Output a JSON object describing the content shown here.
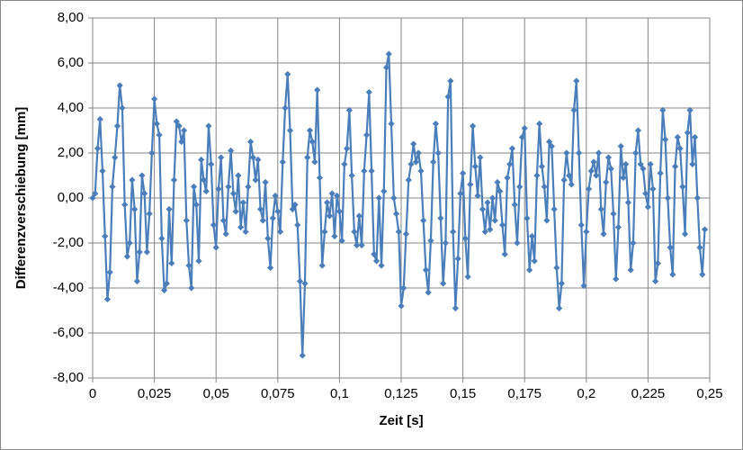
{
  "chart_data": {
    "type": "line",
    "x_label": "Zeit [s]",
    "y_label": "Differenzverschiebung [mm]",
    "x": [
      0,
      0.001,
      0.002,
      0.003,
      0.004,
      0.005,
      0.006,
      0.007,
      0.008,
      0.009,
      0.01,
      0.011,
      0.012,
      0.013,
      0.014,
      0.015,
      0.016,
      0.017,
      0.018,
      0.019,
      0.02,
      0.021,
      0.022,
      0.023,
      0.024,
      0.025,
      0.026,
      0.027,
      0.028,
      0.029,
      0.03,
      0.031,
      0.032,
      0.033,
      0.034,
      0.035,
      0.036,
      0.037,
      0.038,
      0.039,
      0.04,
      0.041,
      0.042,
      0.043,
      0.044,
      0.045,
      0.046,
      0.047,
      0.048,
      0.049,
      0.05,
      0.051,
      0.052,
      0.053,
      0.054,
      0.055,
      0.056,
      0.057,
      0.058,
      0.059,
      0.06,
      0.061,
      0.062,
      0.063,
      0.064,
      0.065,
      0.066,
      0.067,
      0.068,
      0.069,
      0.07,
      0.071,
      0.072,
      0.073,
      0.074,
      0.075,
      0.076,
      0.077,
      0.078,
      0.079,
      0.08,
      0.081,
      0.082,
      0.083,
      0.084,
      0.085,
      0.086,
      0.087,
      0.088,
      0.089,
      0.09,
      0.091,
      0.092,
      0.093,
      0.094,
      0.095,
      0.096,
      0.097,
      0.098,
      0.099,
      0.1,
      0.101,
      0.102,
      0.103,
      0.104,
      0.105,
      0.106,
      0.107,
      0.108,
      0.109,
      0.11,
      0.111,
      0.112,
      0.113,
      0.114,
      0.115,
      0.116,
      0.117,
      0.118,
      0.119,
      0.12,
      0.121,
      0.122,
      0.123,
      0.124,
      0.125,
      0.126,
      0.127,
      0.128,
      0.129,
      0.13,
      0.131,
      0.132,
      0.133,
      0.134,
      0.135,
      0.136,
      0.137,
      0.138,
      0.139,
      0.14,
      0.141,
      0.142,
      0.143,
      0.144,
      0.145,
      0.146,
      0.147,
      0.148,
      0.149,
      0.15,
      0.151,
      0.152,
      0.153,
      0.154,
      0.155,
      0.156,
      0.157,
      0.158,
      0.159,
      0.16,
      0.161,
      0.162,
      0.163,
      0.164,
      0.165,
      0.166,
      0.167,
      0.168,
      0.169,
      0.17,
      0.171,
      0.172,
      0.173,
      0.174,
      0.175,
      0.176,
      0.177,
      0.178,
      0.179,
      0.18,
      0.181,
      0.182,
      0.183,
      0.184,
      0.185,
      0.186,
      0.187,
      0.188,
      0.189,
      0.19,
      0.191,
      0.192,
      0.193,
      0.194,
      0.195,
      0.196,
      0.197,
      0.198,
      0.199,
      0.2,
      0.201,
      0.202,
      0.203,
      0.204,
      0.205,
      0.206,
      0.207,
      0.208,
      0.209,
      0.21,
      0.211,
      0.212,
      0.213,
      0.214,
      0.215,
      0.216,
      0.217,
      0.218,
      0.219,
      0.22,
      0.221,
      0.222,
      0.223,
      0.224,
      0.225,
      0.226,
      0.227,
      0.228,
      0.229,
      0.23,
      0.231,
      0.232,
      0.233,
      0.234,
      0.235,
      0.236,
      0.237,
      0.238,
      0.239,
      0.24,
      0.241,
      0.242,
      0.243,
      0.244,
      0.245,
      0.246,
      0.247,
      0.248
    ],
    "series": [
      {
        "color": "#4a7ebb",
        "values": [
          0,
          0.2,
          2.2,
          3.5,
          1.2,
          -1.7,
          -4.5,
          -3.3,
          0.5,
          1.8,
          3.2,
          5.0,
          4.0,
          -0.3,
          -2.6,
          -2.0,
          0.8,
          -0.5,
          -3.7,
          -2.4,
          1.0,
          0.2,
          -2.4,
          -0.7,
          2.0,
          4.4,
          3.3,
          2.8,
          -1.8,
          -4.1,
          -3.8,
          -0.5,
          -2.9,
          0.8,
          3.4,
          3.2,
          2.5,
          3.0,
          -1.0,
          -3.0,
          -4.0,
          0.5,
          -0.3,
          -2.8,
          1.7,
          0.8,
          0.3,
          3.2,
          1.5,
          -1.2,
          -2.2,
          0.4,
          1.8,
          -1.0,
          -1.6,
          0.5,
          2.1,
          0.2,
          -0.6,
          1.0,
          -1.3,
          -0.2,
          -1.5,
          0.5,
          2.5,
          1.8,
          0.8,
          1.7,
          -0.5,
          -1.0,
          0.7,
          -1.8,
          -3.1,
          -0.9,
          0.1,
          -0.6,
          -1.5,
          1.6,
          4.0,
          5.5,
          3.0,
          -0.5,
          -0.3,
          -1.2,
          -3.7,
          -7.0,
          -3.8,
          1.8,
          3.0,
          2.5,
          1.6,
          4.8,
          0.9,
          -3.0,
          -1.5,
          -0.2,
          -0.8,
          0.2,
          -1.7,
          0.1,
          -0.6,
          -1.9,
          1.5,
          2.2,
          3.9,
          1.0,
          -1.5,
          -2.1,
          -0.8,
          -2.1,
          1.2,
          2.8,
          4.7,
          1.2,
          -2.5,
          -2.8,
          0.0,
          -3.0,
          0.3,
          5.8,
          6.4,
          3.3,
          0.0,
          -0.7,
          -1.5,
          -4.8,
          -4.0,
          -1.6,
          0.8,
          1.5,
          2.4,
          1.6,
          2.0,
          1.2,
          -1.0,
          -3.2,
          -4.2,
          -1.9,
          1.6,
          3.3,
          2.0,
          -0.9,
          -3.8,
          -2.0,
          4.5,
          5.2,
          -1.5,
          -4.9,
          -2.7,
          0.2,
          1.1,
          -1.8,
          -3.5,
          0.6,
          3.2,
          1.4,
          0.1,
          1.8,
          -0.5,
          -1.5,
          -0.2,
          -1.4,
          0.0,
          -1.0,
          0.7,
          0.3,
          -1.2,
          -2.5,
          0.9,
          1.5,
          2.2,
          -0.3,
          -2.0,
          0.5,
          2.7,
          3.1,
          -0.9,
          -3.2,
          -1.7,
          -2.8,
          1.0,
          3.3,
          1.4,
          0.5,
          -1.0,
          2.5,
          2.3,
          -0.5,
          -3.1,
          -4.9,
          -3.8,
          0.8,
          2.0,
          1.0,
          0.6,
          3.9,
          5.2,
          2.0,
          -1.2,
          -3.9,
          -1.5,
          0.4,
          1.2,
          1.6,
          1.0,
          2.0,
          -0.5,
          -1.6,
          0.7,
          1.8,
          1.3,
          -0.7,
          -3.6,
          -1.3,
          2.3,
          0.9,
          1.5,
          -0.2,
          -3.2,
          -2.0,
          2.0,
          3.0,
          1.5,
          1.3,
          0.2,
          -0.4,
          1.5,
          0.4,
          -3.7,
          -2.9,
          1.1,
          3.9,
          2.6,
          0.0,
          -2.2,
          -3.4,
          1.4,
          2.7,
          2.2,
          0.5,
          -1.6,
          2.9,
          3.9,
          1.5,
          2.7,
          0.0,
          -2.2,
          -3.4,
          -1.4
        ]
      }
    ],
    "xlim": [
      0,
      0.25
    ],
    "xticks": [
      0,
      {
        "value": 0.025,
        "label": "0,025"
      },
      {
        "value": 0.05,
        "label": "0,05"
      },
      {
        "value": 0.075,
        "label": "0,075"
      },
      {
        "value": 0.1,
        "label": "0,1"
      },
      {
        "value": 0.125,
        "label": "0,125"
      },
      {
        "value": 0.15,
        "label": "0,15"
      },
      {
        "value": 0.175,
        "label": "0,175"
      },
      {
        "value": 0.2,
        "label": "0,2"
      },
      {
        "value": 0.225,
        "label": "0,225"
      },
      {
        "value": 0.25,
        "label": "0,25"
      }
    ],
    "ylim": [
      -8,
      8
    ],
    "yticks": [
      {
        "value": -8,
        "label": "-8,00"
      },
      {
        "value": -6,
        "label": "-6,00"
      },
      {
        "value": -4,
        "label": "-4,00"
      },
      {
        "value": -2,
        "label": "-2,00"
      },
      {
        "value": 0,
        "label": "0,00"
      },
      {
        "value": 2,
        "label": "2,00"
      },
      {
        "value": 4,
        "label": "4,00"
      },
      {
        "value": 6,
        "label": "6,00"
      },
      {
        "value": 8,
        "label": "8,00"
      }
    ],
    "grid": true
  }
}
